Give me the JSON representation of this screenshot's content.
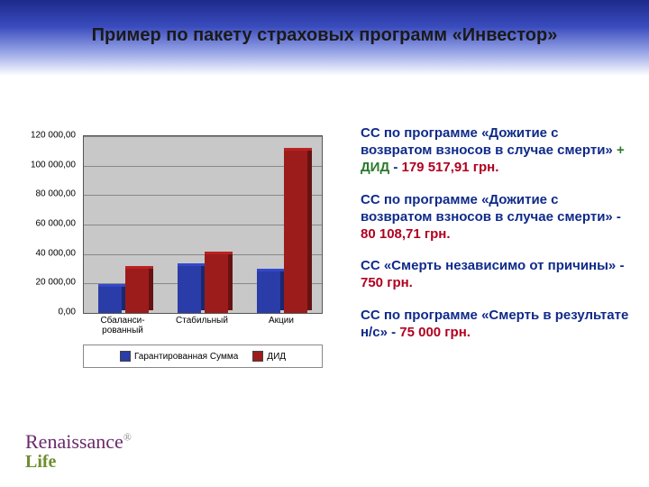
{
  "title": "Пример по пакету страховых программ «Инвестор»",
  "chart": {
    "type": "bar",
    "ylim": [
      0,
      120000
    ],
    "y_ticks": [
      0,
      20000,
      40000,
      60000,
      80000,
      100000,
      120000
    ],
    "y_tick_labels": [
      "0,00",
      "20 000,00",
      "40 000,00",
      "60 000,00",
      "80 000,00",
      "100 000,00",
      "120 000,00"
    ],
    "categories": [
      "Сбаланси-\nрованный",
      "Стабильный",
      "Акции"
    ],
    "series": [
      {
        "name": "Гарантированная Сумма",
        "color": "#2a3ca8",
        "values": [
          18000,
          32000,
          28000
        ]
      },
      {
        "name": "ДИД",
        "color": "#9c1c1c",
        "values": [
          30000,
          40000,
          110000
        ]
      }
    ],
    "plot_bg": "#c8c8c8",
    "grid_color": "#888888",
    "bar_width": 0.7
  },
  "text": {
    "p1_pre": "СС по программе «Дожитие с возвратом взносов в случае смерти» ",
    "p1_mid": "+ ДИД",
    "p1_post": " - ",
    "p1_val": "179 517,91 грн.",
    "p2_pre": "СС по программе «Дожитие с возвратом взносов в случае смерти» - ",
    "p2_val": "80 108,71 грн.",
    "p3_pre": "СС «Смерть независимо от причины» - ",
    "p3_val": "750 грн.",
    "p4_pre": "СС по программе «Смерть в результате н/с» - ",
    "p4_val": "75 000 грн."
  },
  "logo": {
    "main": "Renaissance",
    "sub": "Life"
  },
  "colors": {
    "title_gradient_top": "#1c2a8c",
    "title_gradient_bottom": "#ffffff",
    "text_navy": "#0f2a8a",
    "text_red": "#b00020",
    "text_green": "#2c7a2c",
    "logo_purple": "#6a2a6a",
    "logo_green": "#6e8f2e"
  }
}
